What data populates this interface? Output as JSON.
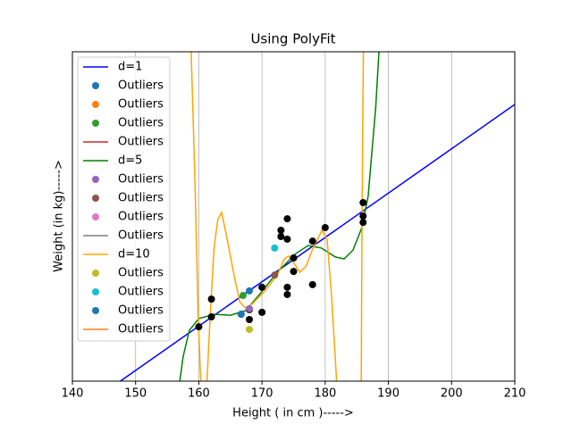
{
  "chart_data": {
    "type": "polyfit",
    "title": "Using PolyFit",
    "x_label": "Height ( in cm )----->",
    "y_label": "Weight (in kg)----->",
    "xlim": [
      140,
      210
    ],
    "xticks": [
      140,
      150,
      160,
      170,
      180,
      190,
      200,
      210
    ],
    "ylim": [
      0,
      100
    ],
    "grid": "x",
    "legend": "upper left",
    "scatter": {
      "color": "#000000",
      "x": [
        160,
        162,
        162,
        166.7,
        168,
        168,
        170,
        170,
        173,
        173,
        174,
        174,
        174,
        174,
        175,
        175,
        178,
        178,
        180,
        186,
        186,
        186
      ],
      "values": [
        16.5,
        24.9,
        19.5,
        20.3,
        18.7,
        21.7,
        28.5,
        20.9,
        45.8,
        43.9,
        49.3,
        43.1,
        28.5,
        26.3,
        37.4,
        33.3,
        42.5,
        29.3,
        46.6,
        54.2,
        50.1,
        48.2
      ]
    },
    "series": [
      {
        "name": "d=1",
        "kind": "line",
        "color": "#0000ff",
        "x": [
          147.6,
          210
        ],
        "values": [
          0,
          84
        ]
      },
      {
        "name": "Outliers",
        "kind": "marker",
        "color": "#1f77b4",
        "x": [
          168
        ],
        "values": [
          27.4
        ]
      },
      {
        "name": "Outliers",
        "kind": "marker",
        "color": "#ff7f0e"
      },
      {
        "name": "Outliers",
        "kind": "marker",
        "color": "#2ca02c",
        "x": [
          167
        ],
        "values": [
          26
        ]
      },
      {
        "name": "Outliers",
        "kind": "line",
        "color": "#d62728"
      },
      {
        "name": "d=5",
        "kind": "line",
        "color": "#008000",
        "x": [
          157,
          157.5,
          158.5,
          160,
          162.5,
          165,
          167.4,
          169.6,
          172.4,
          175.2,
          177.3,
          179.4,
          181.6,
          183,
          184.4,
          185.8,
          186.8,
          188,
          188.5
        ],
        "values": [
          0,
          7.3,
          15.4,
          19,
          20.3,
          20,
          21.4,
          26.3,
          33,
          38.5,
          41.2,
          40.4,
          37.7,
          37.1,
          39.8,
          46.6,
          56.1,
          83.2,
          100
        ]
      },
      {
        "name": "Outliers",
        "kind": "marker",
        "color": "#9467bd",
        "x": [
          168
        ],
        "values": [
          22
        ]
      },
      {
        "name": "Outliers",
        "kind": "marker",
        "color": "#8c564b",
        "x": [
          172
        ],
        "values": [
          32.2
        ]
      },
      {
        "name": "Outliers",
        "kind": "marker",
        "color": "#e377c2"
      },
      {
        "name": "Outliers",
        "kind": "line",
        "color": "#7f7f7f"
      },
      {
        "name": "d=10",
        "kind": "line",
        "color": "#ffa500",
        "x": [
          158.8,
          159.4,
          159.9,
          160.3,
          null,
          161.3,
          161.8,
          162.4,
          163,
          163.6,
          164.3,
          165,
          165.6,
          166.5,
          167.4,
          168.5,
          169.5,
          170.3,
          171.5,
          172.4,
          173.5,
          174.2,
          175,
          176,
          177,
          178,
          179.5,
          180.3,
          181,
          181.5,
          181.8,
          null,
          185.7,
          185.8,
          185.95,
          186.05
        ],
        "values": [
          100,
          60,
          20,
          0,
          null,
          0,
          20,
          40,
          49,
          51.2,
          45,
          38,
          32,
          24,
          22.2,
          23.5,
          25.5,
          27,
          30,
          32,
          37,
          38,
          36,
          33,
          35,
          40,
          45.8,
          43,
          26,
          10,
          0,
          null,
          0,
          40,
          80,
          100
        ]
      },
      {
        "name": "Outliers",
        "kind": "marker",
        "color": "#bcbd22",
        "x": [
          168
        ],
        "values": [
          15.7
        ]
      },
      {
        "name": "Outliers",
        "kind": "marker",
        "color": "#17becf",
        "x": [
          172
        ],
        "values": [
          40.4
        ]
      },
      {
        "name": "Outliers",
        "kind": "marker",
        "color": "#1f77b4",
        "x": [
          166.7
        ],
        "values": [
          20.3
        ]
      },
      {
        "name": "Outliers",
        "kind": "line",
        "color": "#ff7f0e"
      }
    ]
  }
}
